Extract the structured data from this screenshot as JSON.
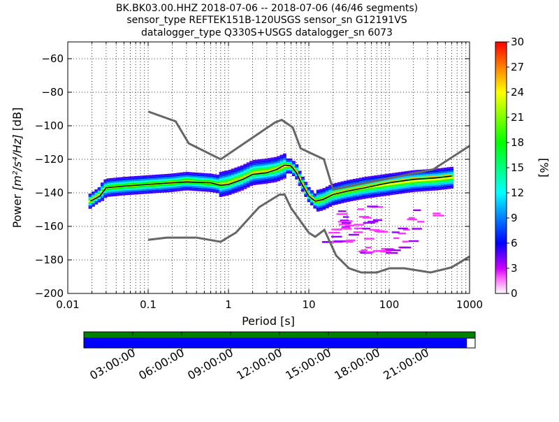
{
  "title": {
    "line1": "BK.BK03.00.HHZ   2018-07-06 -- 2018-07-06  (46/46 segments)",
    "line2": "sensor_type REFTEK151B-120USGS sensor_sn G12191VS",
    "line3": "datalogger_type Q330S+USGS datalogger_sn 6073"
  },
  "axes": {
    "xlabel": "Period [s]",
    "ylabel_main": "Power ",
    "ylabel_math": "[m²/s⁴/Hz]",
    "ylabel_unit": " [dB]",
    "colorbar_label": "[%]"
  },
  "chart_data": {
    "type": "heatmap",
    "x_scale": "log",
    "xlim": [
      0.01,
      1000
    ],
    "ylim": [
      -200,
      -50
    ],
    "x_ticks": [
      {
        "value": 0.01,
        "label": "0.01"
      },
      {
        "value": 0.1,
        "label": "0.1"
      },
      {
        "value": 1,
        "label": "1"
      },
      {
        "value": 10,
        "label": "10"
      },
      {
        "value": 100,
        "label": "100"
      },
      {
        "value": 1000,
        "label": "1000"
      }
    ],
    "y_ticks": [
      {
        "value": -60,
        "label": "−60"
      },
      {
        "value": -80,
        "label": "−80"
      },
      {
        "value": -100,
        "label": "−100"
      },
      {
        "value": -120,
        "label": "−120"
      },
      {
        "value": -140,
        "label": "−140"
      },
      {
        "value": -160,
        "label": "−160"
      },
      {
        "value": -180,
        "label": "−180"
      },
      {
        "value": -200,
        "label": "−200"
      }
    ],
    "grid": "dotted",
    "colorbar": {
      "range": [
        0,
        30
      ],
      "ticks": [
        "0",
        "3",
        "6",
        "9",
        "12",
        "15",
        "18",
        "21",
        "24",
        "27",
        "30"
      ]
    },
    "nhnm": [
      [
        0.1,
        -91.5
      ],
      [
        0.22,
        -97.4
      ],
      [
        0.32,
        -110.5
      ],
      [
        0.8,
        -120
      ],
      [
        3.8,
        -98
      ],
      [
        4.6,
        -96.5
      ],
      [
        6.3,
        -101
      ],
      [
        7.9,
        -113.5
      ],
      [
        15.4,
        -120
      ],
      [
        20,
        -138
      ],
      [
        354,
        -126
      ],
      [
        1000,
        -112
      ]
    ],
    "nlnm": [
      [
        0.1,
        -168
      ],
      [
        0.17,
        -166.7
      ],
      [
        0.4,
        -166.7
      ],
      [
        0.8,
        -169.2
      ],
      [
        1.24,
        -163.7
      ],
      [
        2.4,
        -148.6
      ],
      [
        4.3,
        -141.1
      ],
      [
        5,
        -141.1
      ],
      [
        6,
        -149
      ],
      [
        10,
        -163.8
      ],
      [
        12,
        -166.2
      ],
      [
        15.6,
        -162.1
      ],
      [
        21.9,
        -177.5
      ],
      [
        31.6,
        -185
      ],
      [
        45,
        -187.5
      ],
      [
        70,
        -187.5
      ],
      [
        101,
        -185
      ],
      [
        154,
        -185
      ],
      [
        328,
        -187.5
      ],
      [
        600,
        -184.4
      ],
      [
        1000,
        -178
      ]
    ],
    "mean_curve": [
      [
        0.019,
        -145
      ],
      [
        0.025,
        -142
      ],
      [
        0.03,
        -137
      ],
      [
        0.05,
        -136
      ],
      [
        0.1,
        -135
      ],
      [
        0.2,
        -134
      ],
      [
        0.3,
        -133.5
      ],
      [
        0.6,
        -134
      ],
      [
        0.8,
        -135.5
      ],
      [
        1,
        -135
      ],
      [
        1.5,
        -132
      ],
      [
        2,
        -129
      ],
      [
        3,
        -128
      ],
      [
        4,
        -126
      ],
      [
        5,
        -123.5
      ],
      [
        6,
        -124
      ],
      [
        7,
        -128
      ],
      [
        8,
        -134
      ],
      [
        10,
        -142
      ],
      [
        12,
        -145
      ],
      [
        15,
        -144
      ],
      [
        20,
        -141
      ],
      [
        30,
        -139
      ],
      [
        50,
        -137
      ],
      [
        100,
        -134
      ],
      [
        200,
        -132
      ],
      [
        400,
        -131
      ],
      [
        600,
        -130
      ]
    ],
    "mode_curve": [
      [
        0.019,
        -144
      ],
      [
        0.025,
        -141
      ],
      [
        0.03,
        -137
      ],
      [
        0.05,
        -136
      ],
      [
        0.1,
        -135
      ],
      [
        0.2,
        -133.5
      ],
      [
        0.3,
        -133
      ],
      [
        0.6,
        -134
      ],
      [
        0.8,
        -135
      ],
      [
        1,
        -134
      ],
      [
        1.5,
        -131
      ],
      [
        2,
        -128
      ],
      [
        3,
        -127
      ],
      [
        4,
        -125
      ],
      [
        5,
        -123
      ],
      [
        6,
        -123.5
      ],
      [
        7,
        -127
      ],
      [
        8,
        -133
      ],
      [
        10,
        -141
      ],
      [
        12,
        -144.5
      ],
      [
        15,
        -143.5
      ],
      [
        20,
        -140
      ],
      [
        30,
        -138
      ],
      [
        50,
        -136
      ],
      [
        100,
        -133
      ],
      [
        200,
        -131
      ],
      [
        400,
        -130
      ],
      [
        600,
        -129
      ]
    ],
    "density_ridge": [
      [
        0.019,
        -145
      ],
      [
        0.025,
        -141
      ],
      [
        0.03,
        -137
      ],
      [
        0.05,
        -136
      ],
      [
        0.1,
        -135
      ],
      [
        0.2,
        -134
      ],
      [
        0.3,
        -133
      ],
      [
        0.6,
        -134
      ],
      [
        0.8,
        -135
      ],
      [
        1,
        -134
      ],
      [
        1.5,
        -131
      ],
      [
        2,
        -128
      ],
      [
        3,
        -127
      ],
      [
        4,
        -126
      ],
      [
        5,
        -124
      ],
      [
        6,
        -124
      ],
      [
        7,
        -127
      ],
      [
        8,
        -133
      ],
      [
        10,
        -141
      ],
      [
        12,
        -145
      ],
      [
        15,
        -144
      ],
      [
        20,
        -141
      ],
      [
        30,
        -139
      ],
      [
        50,
        -137
      ],
      [
        100,
        -135
      ],
      [
        200,
        -133
      ],
      [
        400,
        -132
      ],
      [
        600,
        -131
      ]
    ],
    "outlier_rows": [
      [
        20,
        70,
        -148,
        -162
      ],
      [
        15,
        40,
        -155,
        -170
      ],
      [
        30,
        200,
        -160,
        -170
      ],
      [
        25,
        400,
        -150,
        -165
      ],
      [
        40,
        150,
        -172,
        -176
      ]
    ]
  },
  "timeline": {
    "coverage_color": "#008000",
    "data_color": "#0000ff",
    "data_fraction": 0.979,
    "labels": [
      "03:00:00",
      "06:00:00",
      "09:00:00",
      "12:00:00",
      "15:00:00",
      "18:00:00",
      "21:00:00"
    ],
    "fractions": [
      0.125,
      0.25,
      0.375,
      0.5,
      0.625,
      0.75,
      0.875
    ]
  },
  "colors": {
    "model_lines": "#666666",
    "mean_line": "#000000",
    "mode_line": "#e6c800"
  }
}
